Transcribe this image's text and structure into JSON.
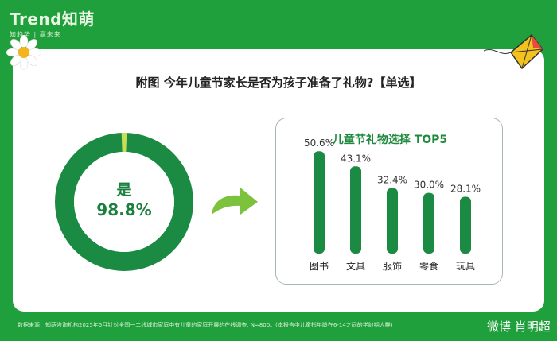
{
  "brand": {
    "logo": "Trend知萌",
    "tagline": "知趋势 | 赢未来"
  },
  "title": "附图 今年儿童节家长是否为孩子准备了礼物?【单选】",
  "donut": {
    "label": "是",
    "value_text": "98.8%",
    "value": 98.8,
    "color": "#1b8a43",
    "other_color": "#c7de5a"
  },
  "panel": {
    "title": "儿童节礼物选择 TOP5"
  },
  "chart_data": {
    "type": "bar",
    "title": "儿童节礼物选择 TOP5",
    "categories": [
      "图书",
      "文具",
      "服饰",
      "零食",
      "玩具"
    ],
    "values": [
      50.6,
      43.1,
      32.4,
      30.0,
      28.1
    ],
    "value_labels": [
      "50.6%",
      "43.1%",
      "32.4%",
      "30.0%",
      "28.1%"
    ],
    "unit": "%",
    "ylim": [
      0,
      55
    ],
    "grid": false,
    "bar_color": "#1b8a43"
  },
  "footer": {
    "source": "数据来源：知萌咨询机构2025年5月针对全国一二线城市家庭中有儿童的家庭开展的在线调查, N=800。(本报告中儿童指年龄在6-14之间的学龄期人群)",
    "watermark": "微博 肖明超"
  },
  "colors": {
    "background": "#1fa03c",
    "accent": "#1b8a43"
  }
}
